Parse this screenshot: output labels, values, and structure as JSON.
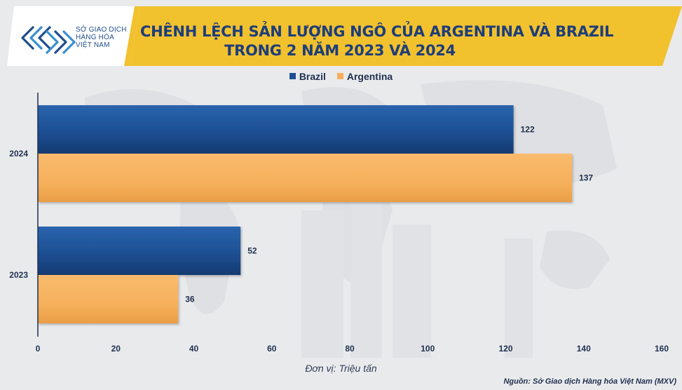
{
  "logo": {
    "lines": [
      "SỞ GIAO DỊCH",
      "HÀNG HÓA",
      "VIỆT NAM"
    ]
  },
  "title": {
    "line1": "CHÊNH LỆCH SẢN LƯỢNG NGÔ CỦA ARGENTINA VÀ BRAZIL",
    "line2": "TRONG 2 NĂM 2023 VÀ 2024"
  },
  "colors": {
    "brazil": "#1d4f93",
    "argentina": "#f6b05c",
    "header_yellow": "#f2c12e",
    "title": "#1d3e7a"
  },
  "unit_label": "Đơn vị: Triệu tấn",
  "source": "Nguồn: Sở Giao dịch Hàng hóa Việt Nam (MXV)",
  "chart_data": {
    "type": "bar",
    "orientation": "horizontal",
    "title": "CHÊNH LỆCH SẢN LƯỢNG NGÔ CỦA ARGENTINA VÀ BRAZIL TRONG 2 NĂM 2023 VÀ 2024",
    "categories": [
      "2024",
      "2023"
    ],
    "series": [
      {
        "name": "Brazil",
        "values": [
          122,
          52
        ]
      },
      {
        "name": "Argentina",
        "values": [
          137,
          36
        ]
      }
    ],
    "xlim": [
      0,
      160
    ],
    "xticks": [
      0,
      20,
      40,
      60,
      80,
      100,
      120,
      140,
      160
    ],
    "xlabel": "Đơn vị: Triệu tấn",
    "legend": "top-center",
    "grid": false,
    "data_labels": true
  }
}
